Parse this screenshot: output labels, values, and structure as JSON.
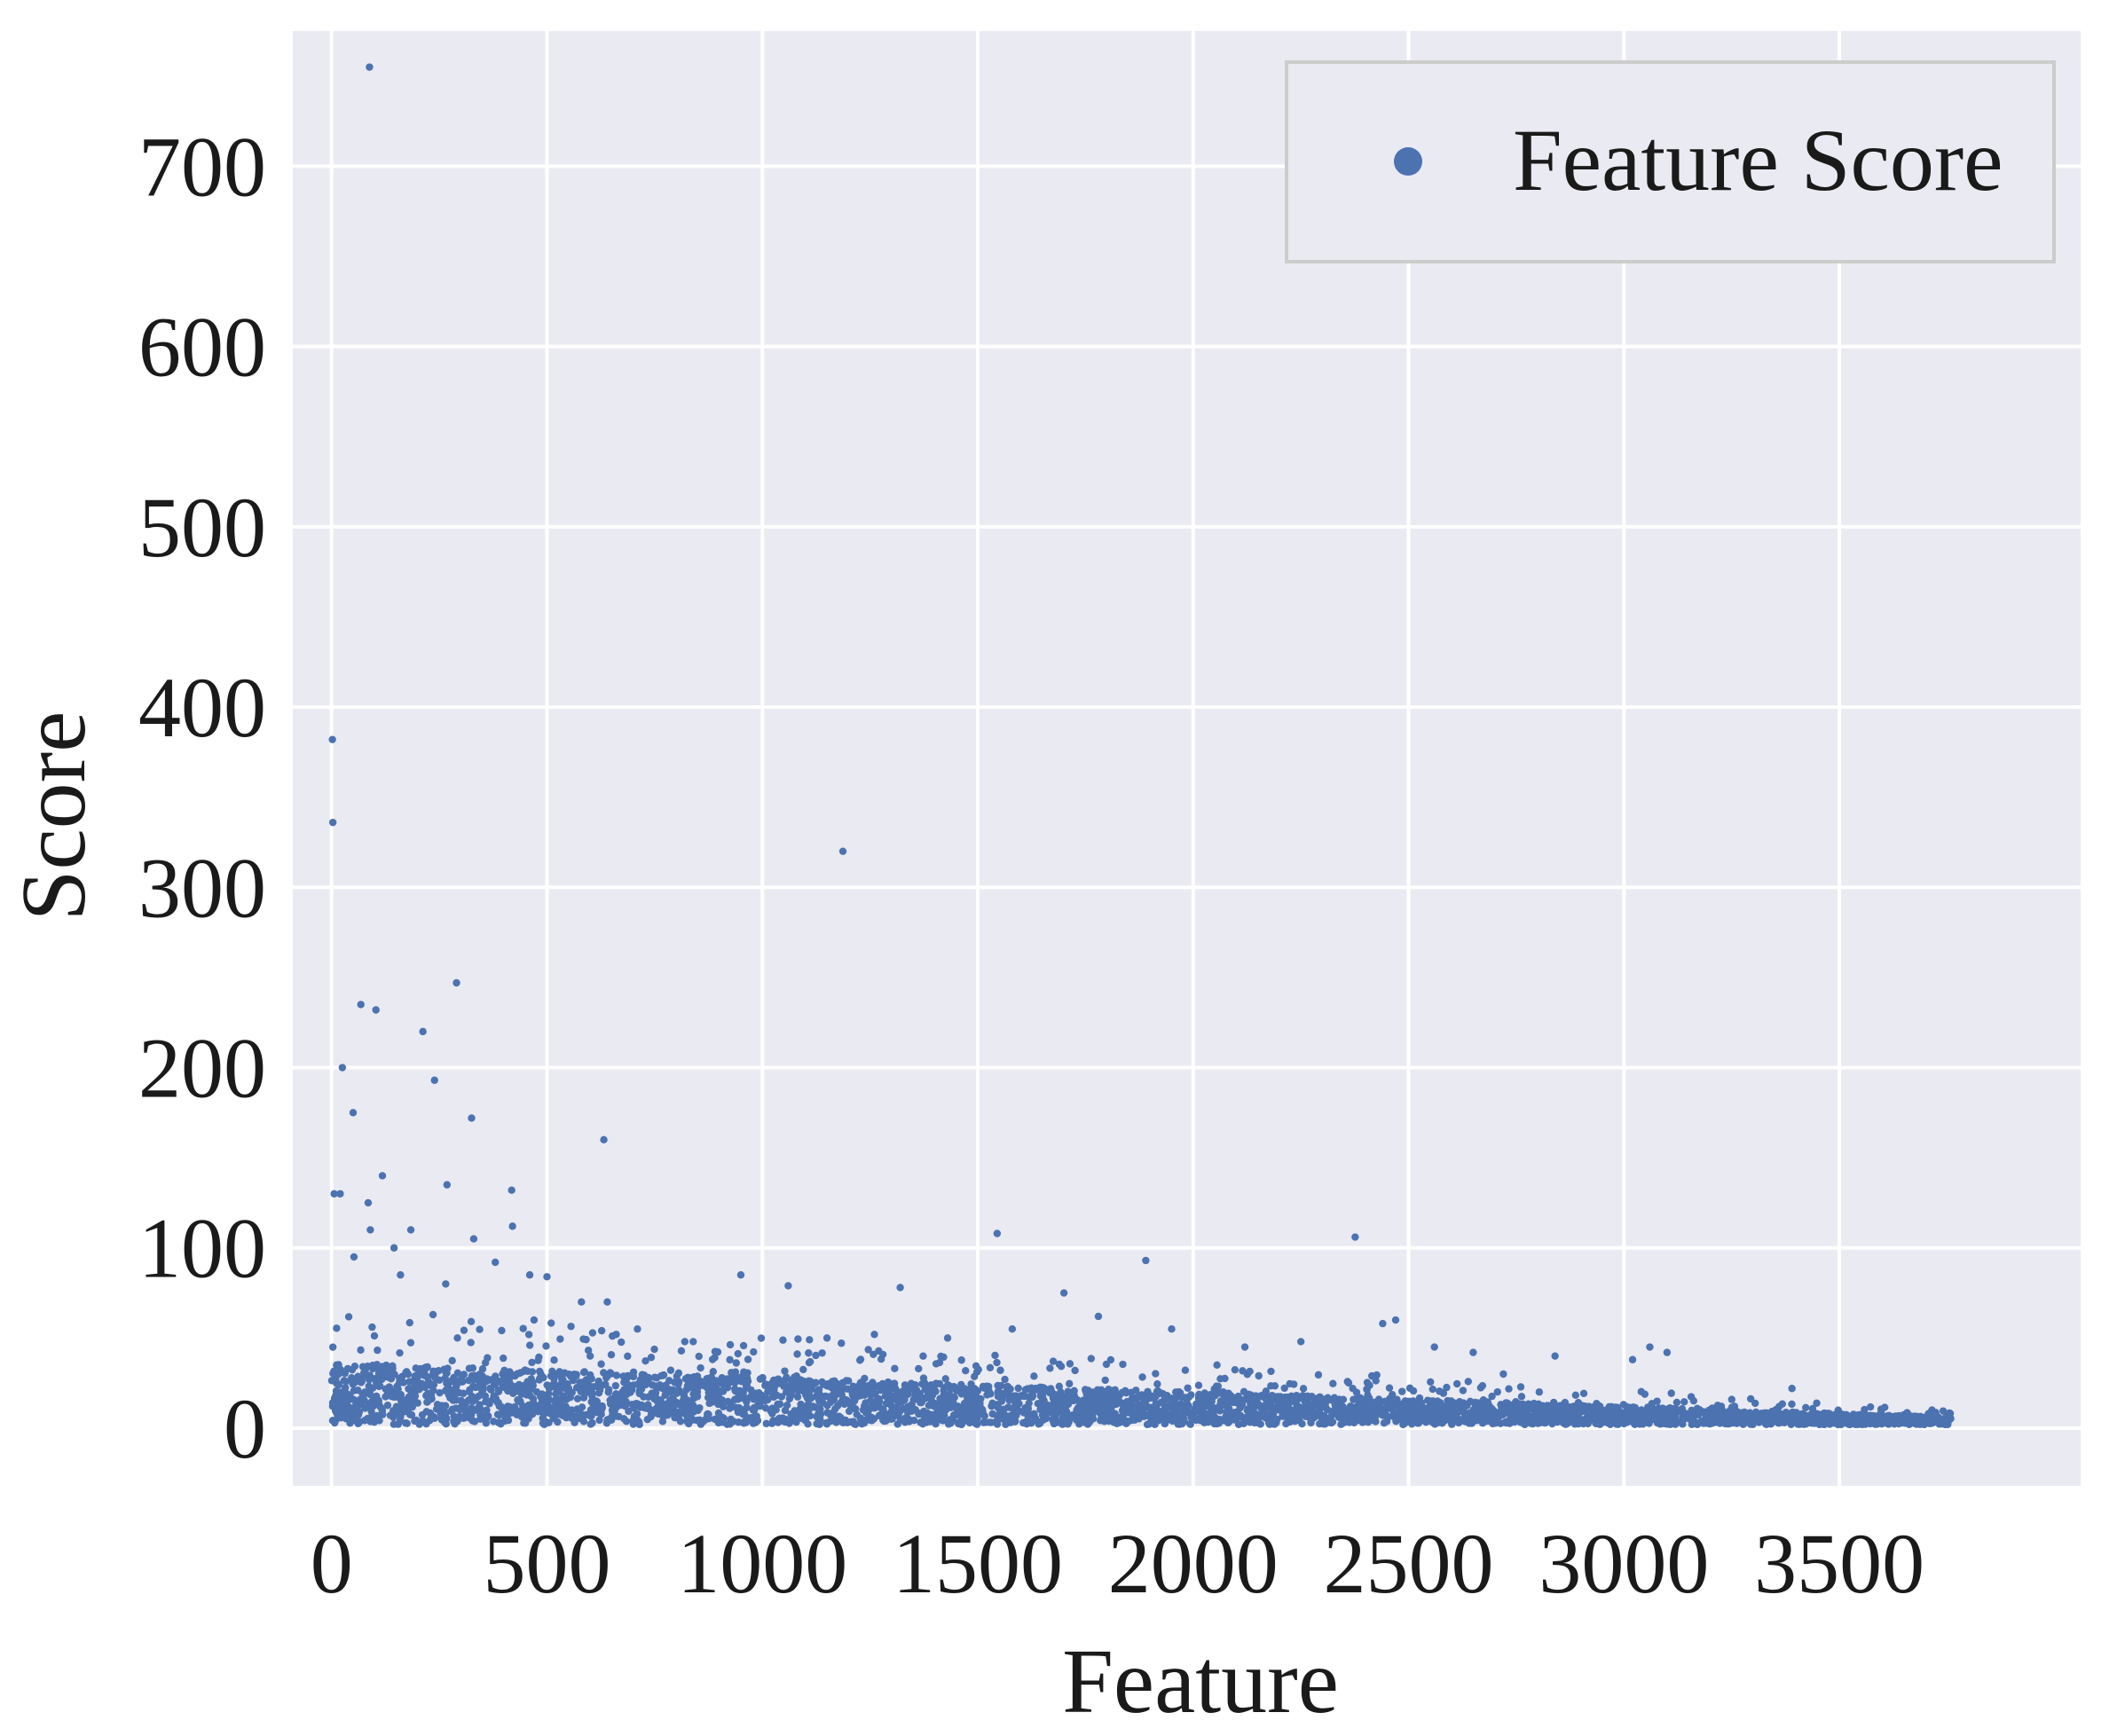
{
  "chart_data": {
    "type": "scatter",
    "title": "",
    "xlabel": "Feature",
    "ylabel": "Score",
    "xlim": [
      -90,
      4060
    ],
    "ylim": [
      -32,
      775
    ],
    "xticks": [
      0,
      500,
      1000,
      1500,
      2000,
      2500,
      3000,
      3500
    ],
    "yticks": [
      0,
      100,
      200,
      300,
      400,
      500,
      600,
      700
    ],
    "grid": true,
    "legend": {
      "position": "top-right",
      "entries": [
        "Feature Score"
      ]
    },
    "colors": {
      "series": "#4c72b0",
      "plot_background": "#eaeaf2",
      "grid": "#ffffff"
    },
    "series": [
      {
        "name": "Feature Score",
        "points": [
          [
            88,
            755
          ],
          [
            2,
            382
          ],
          [
            3,
            336
          ],
          [
            1187,
            320
          ],
          [
            290,
            247
          ],
          [
            68,
            235
          ],
          [
            103,
            232
          ],
          [
            212,
            220
          ],
          [
            25,
            200
          ],
          [
            239,
            193
          ],
          [
            632,
            160
          ],
          [
            50,
            175
          ],
          [
            325,
            172
          ],
          [
            6,
            130
          ],
          [
            20,
            130
          ],
          [
            118,
            140
          ],
          [
            268,
            135
          ],
          [
            418,
            132
          ],
          [
            85,
            125
          ],
          [
            420,
            112
          ],
          [
            184,
            110
          ],
          [
            330,
            105
          ],
          [
            1545,
            108
          ],
          [
            2376,
            106
          ],
          [
            145,
            100
          ],
          [
            1890,
            93
          ],
          [
            950,
            85
          ],
          [
            460,
            85
          ],
          [
            500,
            84
          ],
          [
            1060,
            79
          ],
          [
            1320,
            78
          ],
          [
            1700,
            75
          ],
          [
            265,
            80
          ],
          [
            52,
            95
          ],
          [
            580,
            70
          ],
          [
            470,
            60
          ],
          [
            710,
            55
          ],
          [
            1580,
            55
          ],
          [
            1780,
            62
          ],
          [
            1950,
            55
          ],
          [
            2440,
            58
          ],
          [
            2470,
            60
          ],
          [
            3060,
            45
          ],
          [
            2650,
            42
          ],
          [
            2840,
            40
          ],
          [
            3020,
            38
          ],
          [
            3100,
            42
          ],
          [
            3390,
            22
          ],
          [
            380,
            92
          ],
          [
            90,
            110
          ],
          [
            160,
            85
          ],
          [
            640,
            70
          ],
          [
            820,
            48
          ],
          [
            1150,
            50
          ],
          [
            1260,
            52
          ],
          [
            1430,
            50
          ],
          [
            2120,
            45
          ],
          [
            2250,
            48
          ],
          [
            2560,
            45
          ],
          [
            2720,
            30
          ]
        ]
      }
    ]
  }
}
